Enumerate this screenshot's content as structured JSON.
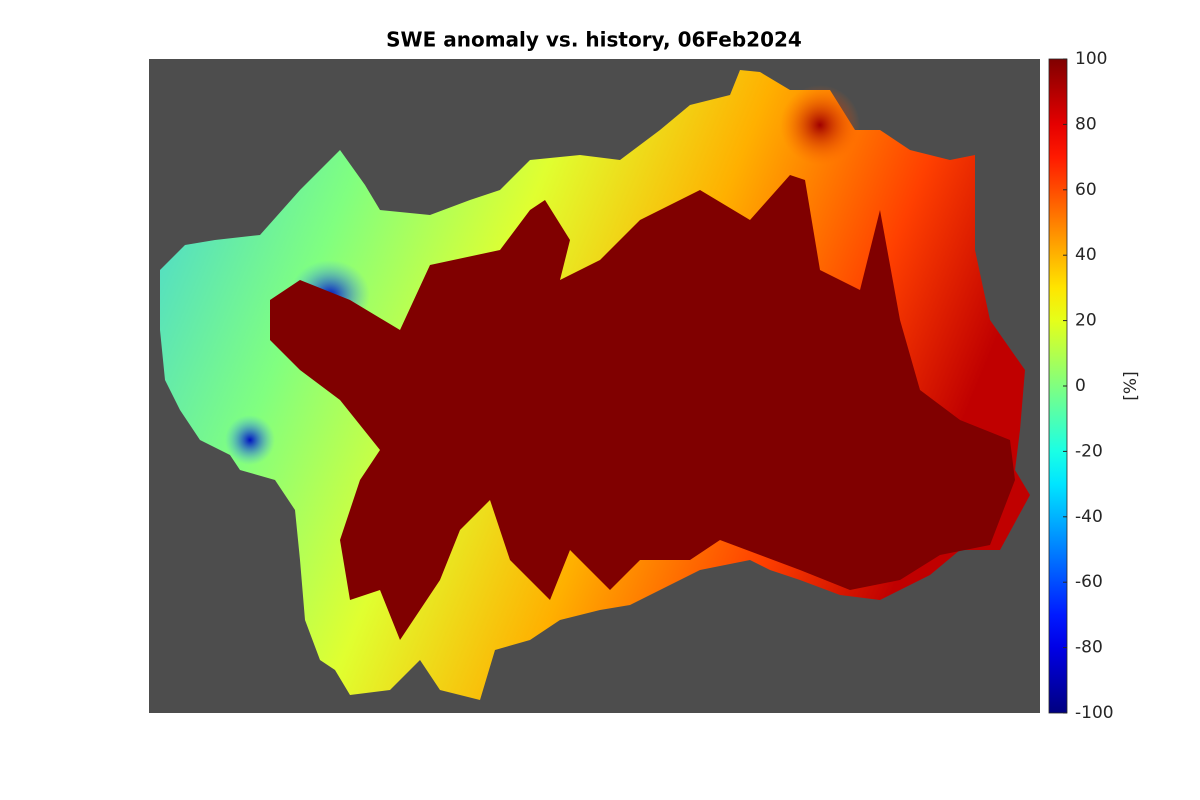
{
  "chart_data": {
    "type": "heatmap",
    "title": "SWE anomaly vs. history, 06Feb2024",
    "colormap": "jet",
    "background": "#4d4d4d",
    "colorbar_label": "[%]",
    "clim": [
      -100,
      100
    ],
    "cticks": [
      -100,
      -80,
      -60,
      -40,
      -20,
      0,
      20,
      40,
      60,
      80,
      100
    ]
  }
}
